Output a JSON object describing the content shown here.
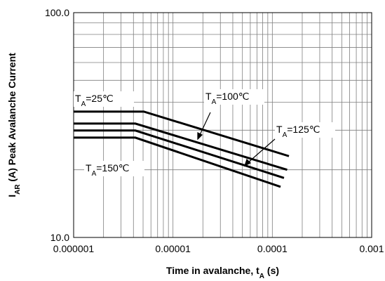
{
  "chart_data": {
    "type": "line",
    "xlabel": [
      "Time in avalanche, t",
      "A",
      " (s)"
    ],
    "ylabel": [
      "I",
      "AR",
      " (A) Peak Avalanche Current"
    ],
    "xscale": "log",
    "yscale": "log",
    "grid": true,
    "xlim": [
      1e-06,
      0.001
    ],
    "ylim": [
      10,
      100
    ],
    "xticks": [
      1e-06,
      1e-05,
      0.0001,
      0.001
    ],
    "yticks": [
      {
        "value": 10,
        "label": "10.0"
      },
      {
        "value": 100,
        "label": "100.0"
      }
    ],
    "xminorticks": [
      2e-06,
      3e-06,
      4e-06,
      5e-06,
      6e-06,
      7e-06,
      8e-06,
      9e-06,
      2e-05,
      3e-05,
      4e-05,
      5e-05,
      6e-05,
      7e-05,
      8e-05,
      9e-05,
      0.0002,
      0.0003,
      0.0004,
      0.0005,
      0.0006,
      0.0007,
      0.0008,
      0.0009
    ],
    "yminorticks": [
      20,
      30,
      40,
      50,
      60,
      70,
      80,
      90
    ],
    "series": [
      {
        "name": [
          "T",
          "A",
          "=25℃"
        ],
        "color": "#000000",
        "x": [
          1e-06,
          5.08e-06,
          0.000147
        ],
        "values": [
          36.3,
          36.3,
          23.0
        ]
      },
      {
        "name": [
          "T",
          "A",
          "=100℃"
        ],
        "color": "#000000",
        "x": [
          1e-06,
          4.18e-06,
          0.000141
        ],
        "values": [
          32.1,
          32.1,
          20.0
        ]
      },
      {
        "name": [
          "T",
          "A",
          "=125℃"
        ],
        "color": "#000000",
        "x": [
          1e-06,
          4.18e-06,
          0.000131
        ],
        "values": [
          29.9,
          29.9,
          18.4
        ]
      },
      {
        "name": [
          "T",
          "A",
          "=150℃"
        ],
        "color": "#000000",
        "x": [
          1e-06,
          4.18e-06,
          0.000121
        ],
        "values": [
          27.8,
          27.8,
          16.8
        ]
      }
    ]
  }
}
